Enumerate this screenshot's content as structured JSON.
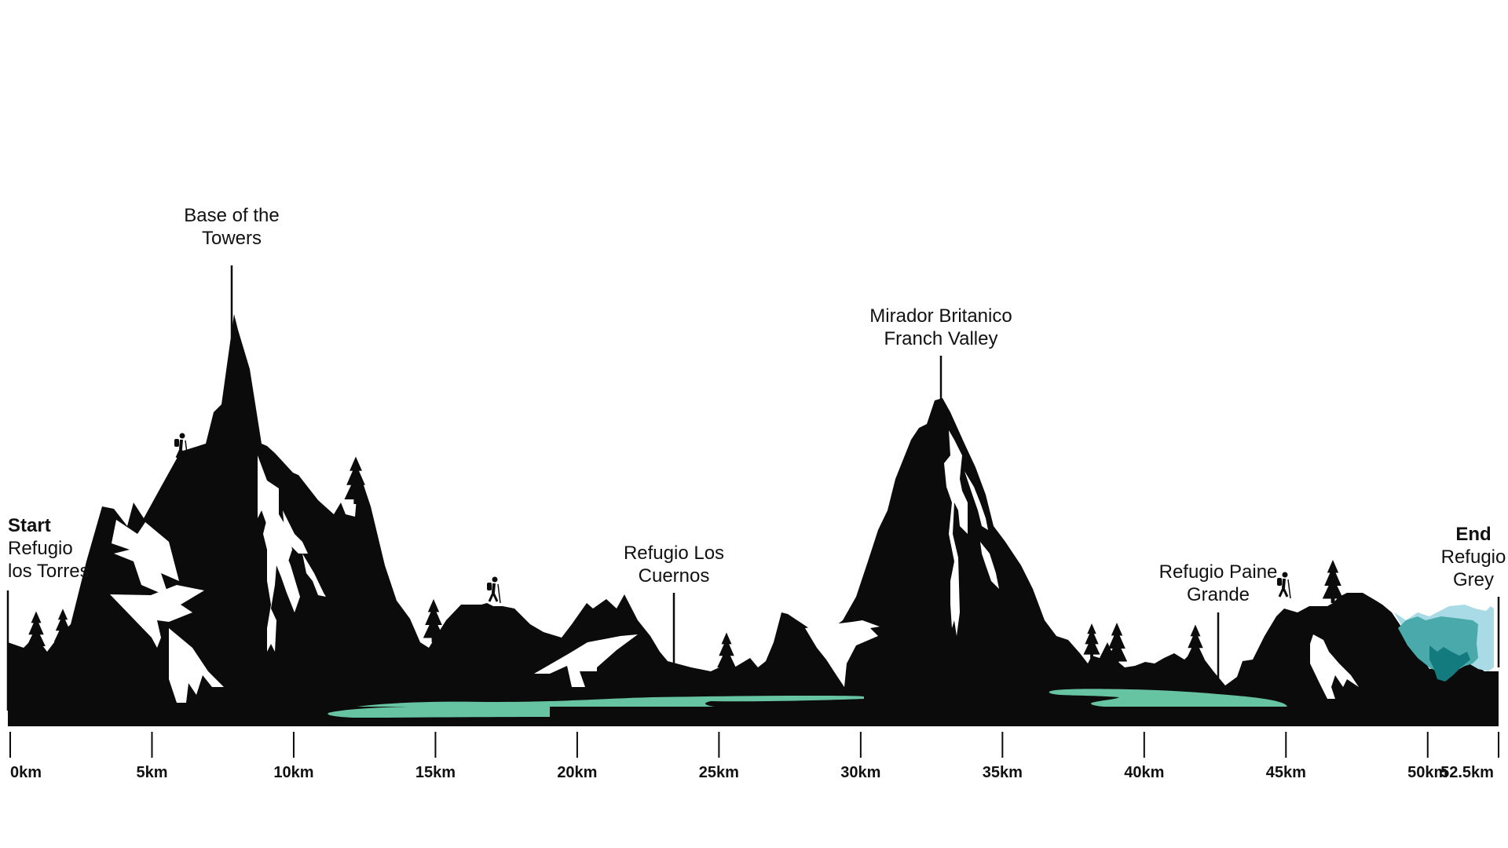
{
  "colors": {
    "mountain": "#0b0b0b",
    "snow": "#ffffff",
    "lake": "#66c4a2",
    "glacier_light": "#a9dbe6",
    "glacier_mid": "#4aa9ab",
    "glacier_dark": "#137a7e"
  },
  "markers": {
    "start": {
      "tag": "Start",
      "line1": "Refugio",
      "line2": "los Torres"
    },
    "base_towers": {
      "line1": "Base of the",
      "line2": "Towers"
    },
    "los_cuernos": {
      "line1": "Refugio Los",
      "line2": "Cuernos"
    },
    "mirador": {
      "line1": "Mirador Britanico",
      "line2": "Franch Valley"
    },
    "paine_grande": {
      "line1": "Refugio Paine",
      "line2": "Grande"
    },
    "end": {
      "tag": "End",
      "line1": "Refugio",
      "line2": "Grey"
    }
  },
  "axis": {
    "unit": "km",
    "ticks": [
      {
        "value": 0,
        "label": "0km"
      },
      {
        "value": 5,
        "label": "5km"
      },
      {
        "value": 10,
        "label": "10km"
      },
      {
        "value": 15,
        "label": "15km"
      },
      {
        "value": 20,
        "label": "20km"
      },
      {
        "value": 25,
        "label": "25km"
      },
      {
        "value": 30,
        "label": "30km"
      },
      {
        "value": 35,
        "label": "35km"
      },
      {
        "value": 40,
        "label": "40km"
      },
      {
        "value": 45,
        "label": "45km"
      },
      {
        "value": 50,
        "label": "50km"
      },
      {
        "value": 52.5,
        "label": "52.5km"
      }
    ]
  },
  "icons": [
    "hiker-icon",
    "pine-tree-icon"
  ]
}
